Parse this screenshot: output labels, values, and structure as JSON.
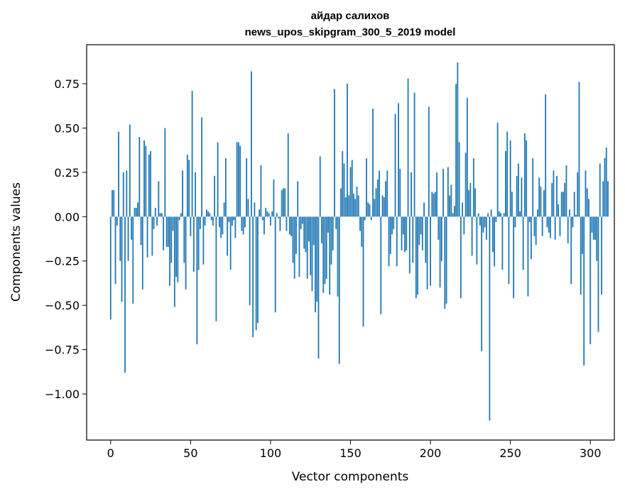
{
  "chart_data": {
    "type": "bar",
    "title_line1": "айдар салихов",
    "title_line2": "news_upos_skipgram_300_5_2019 model",
    "xlabel": "Vector components",
    "ylabel": "Components values",
    "xlim": [
      -15,
      315
    ],
    "ylim": [
      -1.26,
      0.97
    ],
    "x_ticks": [
      0,
      50,
      100,
      150,
      200,
      250,
      300
    ],
    "x_tick_labels": [
      "0",
      "50",
      "100",
      "150",
      "200",
      "250",
      "300"
    ],
    "y_ticks": [
      0.75,
      0.5,
      0.25,
      0.0,
      -0.25,
      -0.5,
      -0.75,
      -1.0
    ],
    "y_tick_labels": [
      "0.75",
      "0.50",
      "0.25",
      "0.00",
      "−0.25",
      "−0.50",
      "−0.75",
      "−1.00"
    ],
    "grid": false,
    "bar_color": "#1f77b4",
    "values": [
      -0.58,
      0.15,
      0.15,
      -0.38,
      -0.05,
      0.48,
      -0.25,
      -0.48,
      0.25,
      -0.88,
      0.26,
      -0.25,
      0.52,
      -0.13,
      -0.49,
      0.05,
      0.05,
      0.08,
      0.45,
      -0.16,
      -0.41,
      0.43,
      0.4,
      -0.23,
      0.35,
      0.37,
      -0.22,
      -0.07,
      0.05,
      -0.05,
      0.2,
      0.02,
      0.02,
      -0.19,
      0.5,
      -0.17,
      -0.17,
      -0.39,
      -0.26,
      -0.08,
      -0.51,
      -0.34,
      -0.37,
      -0.02,
      0.02,
      0.26,
      -0.26,
      -0.41,
      0.35,
      0.32,
      -0.11,
      0.71,
      -0.31,
      0.25,
      -0.72,
      -0.3,
      -0.07,
      0.56,
      -0.27,
      -0.05,
      0.04,
      0.03,
      0.02,
      -0.02,
      -0.05,
      0.23,
      -0.59,
      0.42,
      -0.06,
      -0.12,
      -0.1,
      0.08,
      0.33,
      -0.22,
      -0.03,
      -0.3,
      -0.05,
      -0.02,
      -0.12,
      0.42,
      0.42,
      0.4,
      -0.08,
      -0.1,
      -0.06,
      0.33,
      0.1,
      -0.5,
      0.82,
      -0.68,
      0.08,
      -0.64,
      -0.6,
      0.04,
      0.29,
      -0.02,
      -0.1,
      0.05,
      0.03,
      0.02,
      -0.05,
      0.03,
      0.21,
      -0.54,
      0.02,
      -0.01,
      -0.08,
      0.15,
      0.16,
      0.16,
      -0.08,
      0.47,
      -0.1,
      -0.11,
      -0.26,
      -0.35,
      -0.21,
      0.2,
      -0.34,
      -0.07,
      -0.04,
      -0.18,
      -0.2,
      -0.35,
      -0.14,
      -0.33,
      -0.42,
      -0.16,
      -0.54,
      -0.48,
      -0.8,
      0.34,
      -0.15,
      -0.43,
      -0.38,
      -0.35,
      -0.09,
      -0.44,
      -0.27,
      -0.19,
      0.72,
      -0.07,
      -0.45,
      -0.83,
      0.16,
      0.37,
      0.3,
      0.11,
      0.75,
      0.12,
      0.28,
      0.32,
      0.13,
      0.1,
      0.17,
      0.12,
      -0.08,
      -0.17,
      -0.62,
      -0.02,
      0.33,
      0.08,
      0.07,
      -0.02,
      0.61,
      0.1,
      0.16,
      0.21,
      0.26,
      -0.55,
      0.12,
      0.11,
      0.2,
      0.26,
      -0.28,
      -0.21,
      -0.1,
      -0.07,
      0.58,
      -0.28,
      0.64,
      0.27,
      -0.19,
      -0.1,
      -0.2,
      -0.19,
      0.78,
      -0.32,
      0.25,
      -0.26,
      0.7,
      -0.46,
      -0.44,
      -0.16,
      -0.1,
      -0.19,
      0.08,
      -0.26,
      -0.41,
      0.62,
      -0.39,
      0.14,
      0.13,
      0.14,
      0.25,
      -0.13,
      -0.4,
      -0.25,
      0.27,
      -0.52,
      -0.49,
      0.28,
      0.12,
      0.18,
      0.02,
      0.06,
      0.75,
      0.87,
      0.42,
      -0.46,
      0.08,
      -0.1,
      0.36,
      0.67,
      0.15,
      0.19,
      -0.22,
      0.33,
      0.16,
      -0.27,
      0.02,
      -0.05,
      -0.76,
      -0.09,
      -0.06,
      -0.13,
      0.02,
      -1.15,
      0.04,
      -0.2,
      -0.28,
      -0.03,
      0.53,
      0.03,
      0.02,
      -0.3,
      0.02,
      0.37,
      0.48,
      -0.38,
      0.43,
      0.14,
      -0.46,
      -0.06,
      0.23,
      0.3,
      0.03,
      0.22,
      -0.3,
      0.47,
      0.43,
      -0.45,
      -0.03,
      -0.24,
      0.33,
      -0.11,
      -0.16,
      0.04,
      0.22,
      0.17,
      -0.11,
      0.15,
      0.69,
      -0.06,
      -0.09,
      -0.12,
      0.19,
      0.26,
      -0.13,
      0.23,
      0.07,
      -0.11,
      0.14,
      0.14,
      0.19,
      0.29,
      -0.15,
      0.04,
      -0.38,
      -0.06,
      0.14,
      0.01,
      0.25,
      0.76,
      -0.44,
      -0.21,
      -0.84,
      0.26,
      0.16,
      0.1,
      -0.72,
      -0.09,
      -0.13,
      -0.13,
      -0.25,
      -0.65,
      0.3,
      -0.44,
      0.2,
      0.33,
      0.39,
      0.2
    ]
  }
}
